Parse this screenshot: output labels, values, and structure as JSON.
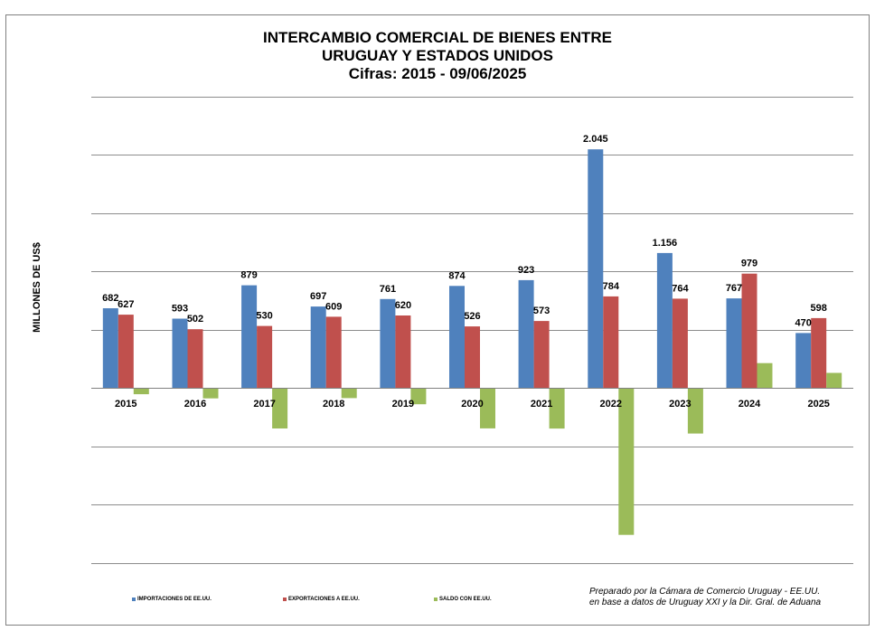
{
  "title_lines": [
    "INTERCAMBIO COMERCIAL DE BIENES ENTRE",
    "URUGUAY Y ESTADOS UNIDOS",
    "Cifras:  2015 - 09/06/2025"
  ],
  "chart_data": {
    "type": "bar",
    "title": "INTERCAMBIO COMERCIAL DE BIENES ENTRE URUGUAY Y ESTADOS UNIDOS",
    "subtitle": "Cifras:  2015 - 09/06/2025",
    "ylabel": "MILLONES DE US$",
    "xlabel": "",
    "categories": [
      "2015",
      "2016",
      "2017",
      "2018",
      "2019",
      "2020",
      "2021",
      "2022",
      "2023",
      "2024",
      "2025"
    ],
    "series": [
      {
        "name": "IMPORTACIONES DE EE.UU.",
        "color": "#4F81BD",
        "values": [
          682,
          593,
          879,
          697,
          761,
          874,
          923,
          2045,
          1156,
          767,
          470
        ],
        "labels": [
          "682",
          "593",
          "879",
          "697",
          "761",
          "874",
          "923",
          "2.045",
          "1.156",
          "767",
          "470"
        ]
      },
      {
        "name": "EXPORTACIONES A EE.UU.",
        "color": "#C0504D",
        "values": [
          627,
          502,
          530,
          609,
          620,
          526,
          573,
          784,
          764,
          979,
          598
        ],
        "labels": [
          "627",
          "502",
          "530",
          "609",
          "620",
          "526",
          "573",
          "784",
          "764",
          "979",
          "598"
        ]
      },
      {
        "name": "SALDO CON EE.UU.",
        "color": "#9BBB59",
        "values": [
          -55,
          -91,
          -349,
          -88,
          -141,
          -348,
          -350,
          -1261,
          -392,
          212,
          128
        ],
        "labels": []
      }
    ],
    "ylim": [
      -1500,
      2500
    ],
    "y_gridlines": [
      -1500,
      -1000,
      -500,
      0,
      500,
      1000,
      1500,
      2000,
      2500
    ],
    "grid": true,
    "legend_position": "bottom-left"
  },
  "notes": [
    "Preparado por la Cámara de Comercio Uruguay - EE.UU.",
    "en base  a datos de Uruguay XXI y la Dir. Gral. de Aduana"
  ]
}
